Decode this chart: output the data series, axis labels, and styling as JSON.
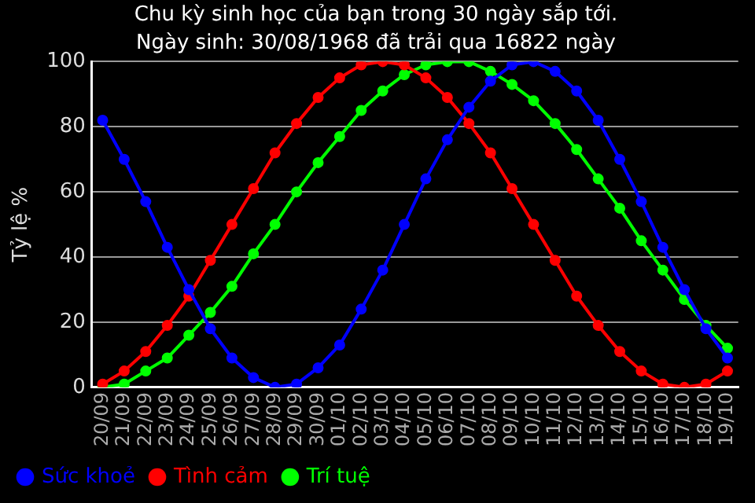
{
  "chart_data": {
    "type": "line",
    "title": "Chu kỳ sinh học của bạn trong 30 ngày sắp tới.",
    "subtitle": "Ngày sinh: 30/08/1968 đã trải qua 16822 ngày",
    "ylabel": "Tỷ lệ %",
    "categories": [
      "20/09",
      "21/09",
      "22/09",
      "23/09",
      "24/09",
      "25/09",
      "26/09",
      "27/09",
      "28/09",
      "29/09",
      "30/09",
      "01/10",
      "02/10",
      "03/10",
      "04/10",
      "05/10",
      "06/10",
      "07/10",
      "08/10",
      "09/10",
      "10/10",
      "11/10",
      "12/10",
      "13/10",
      "14/10",
      "15/10",
      "16/10",
      "17/10",
      "18/10",
      "19/10"
    ],
    "series": [
      {
        "name": "Sức khoẻ",
        "color": "#0000ff",
        "values": [
          82,
          70,
          57,
          43,
          30,
          18,
          9,
          3,
          0,
          1,
          6,
          13,
          24,
          36,
          50,
          64,
          76,
          86,
          94,
          99,
          100,
          97,
          91,
          82,
          70,
          57,
          43,
          30,
          18,
          9
        ]
      },
      {
        "name": "Tình cảm",
        "color": "#ff0000",
        "values": [
          1,
          5,
          11,
          19,
          28,
          39,
          50,
          61,
          72,
          81,
          89,
          95,
          99,
          100,
          99,
          95,
          89,
          81,
          72,
          61,
          50,
          39,
          28,
          19,
          11,
          5,
          1,
          0,
          1,
          5
        ]
      },
      {
        "name": "Trí tuệ",
        "color": "#00ff00",
        "values": [
          0,
          1,
          5,
          9,
          16,
          23,
          31,
          41,
          50,
          60,
          69,
          77,
          85,
          91,
          96,
          99,
          100,
          100,
          97,
          93,
          88,
          81,
          73,
          64,
          55,
          45,
          36,
          27,
          19,
          12
        ]
      }
    ],
    "ylim": [
      0,
      100
    ],
    "yticks": [
      0,
      20,
      40,
      60,
      80,
      100
    ],
    "grid": "y",
    "legend": "bottom",
    "marker": "circle",
    "line_style": "solid"
  }
}
